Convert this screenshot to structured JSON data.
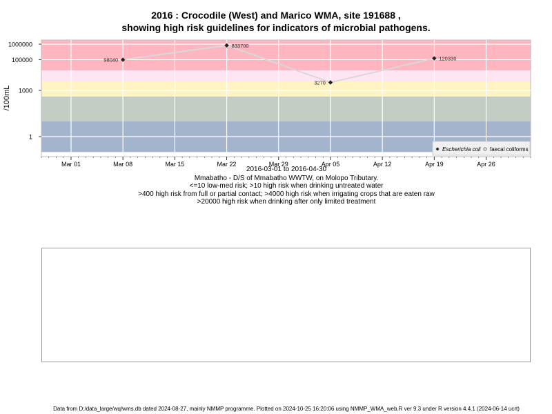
{
  "title_line1": "2016 : Crocodile (West) and Marico WMA, site 191688 ,",
  "title_line2": "showing high risk guidelines for indicators of microbial pathogens.",
  "date_range": "2016-03-01 to 2016-04-30",
  "site_description": "Mmabatho - D/S of Mmabatho WWTW, on Molopo Tributary.",
  "guideline_1": "<=10 low-med risk; >10 high risk when drinking untreated water",
  "guideline_2": ">400 high risk from full or partial contact; >4000 high risk when irrigating crops that are eaten raw",
  "guideline_3": ">20000 high risk when drinking after only limited treatment",
  "footer": "Data from D:/data_large/wq/wms.db dated 2024-08-27, mainly NMMP programme. Plotted on 2024-10-25 16:20:06 using NMMP_WMA_web.R ver 9.3 under R version 4.4.1 (2024-06-14 ucrt)",
  "chart_data": {
    "type": "line",
    "ylabel": "/100mL",
    "y_scale": "log",
    "y_ticks": [
      1,
      1000,
      100000,
      1000000
    ],
    "y_tick_labels": [
      "1",
      "1000",
      "100000",
      "1000000"
    ],
    "x_ticks": [
      "2016-03-01",
      "2016-03-08",
      "2016-03-15",
      "2016-03-22",
      "2016-03-29",
      "2016-04-05",
      "2016-04-12",
      "2016-04-19",
      "2016-04-26"
    ],
    "x_tick_labels": [
      "Mar 01",
      "Mar 08",
      "Mar 15",
      "Mar 22",
      "Mar 29",
      "Apr 05",
      "Apr 12",
      "Apr 19",
      "Apr 26"
    ],
    "xlim": [
      "2016-02-26",
      "2016-05-02"
    ],
    "grid": true,
    "risk_bands": [
      {
        "from": 20000,
        "to": 2000000,
        "color": "#ffb6c1"
      },
      {
        "from": 4000,
        "to": 20000,
        "color": "#ffe4f4"
      },
      {
        "from": 400,
        "to": 4000,
        "color": "#fff4c2"
      },
      {
        "from": 10,
        "to": 400,
        "color": "#c3cdc3"
      },
      {
        "from": 0.1,
        "to": 10,
        "color": "#a3b4cc"
      }
    ],
    "series": [
      {
        "name": "Escherichia coli",
        "marker": "diamond",
        "line_color": "#d8d8d8",
        "points": [
          {
            "x": "2016-03-08",
            "y": 98040,
            "label": "98040",
            "label_side": "left"
          },
          {
            "x": "2016-03-22",
            "y": 833700,
            "label": "833700",
            "label_side": "right"
          },
          {
            "x": "2016-04-05",
            "y": 3270,
            "label": "3270",
            "label_side": "left"
          },
          {
            "x": "2016-04-19",
            "y": 120330,
            "label": "120330",
            "label_side": "right"
          }
        ]
      },
      {
        "name": "faecal coliforms",
        "marker": "circle",
        "points": []
      }
    ],
    "legend_position": "bottom-right"
  }
}
